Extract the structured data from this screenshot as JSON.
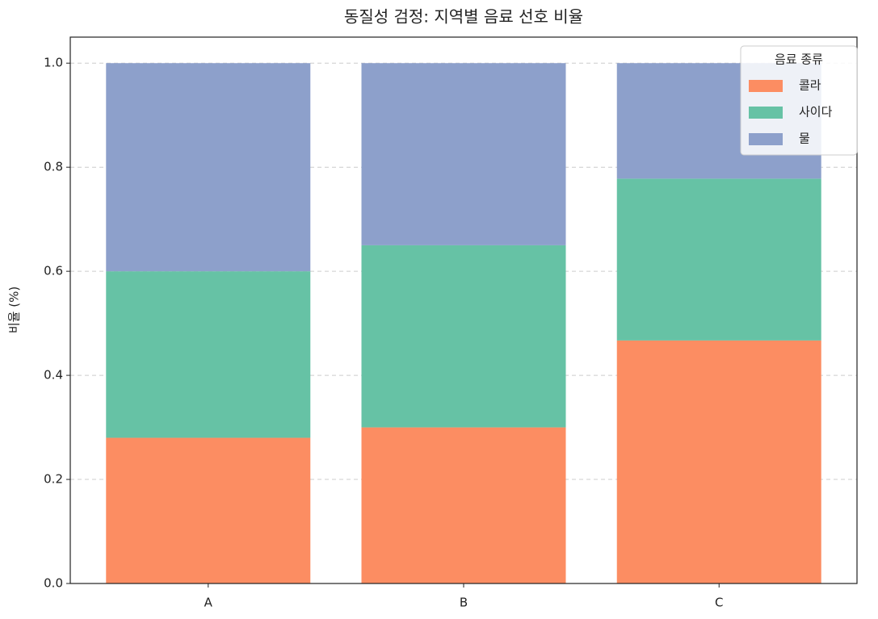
{
  "chart_data": {
    "type": "stacked_bar",
    "title": "동질성 검정: 지역별 음료 선호 비율",
    "ylabel": "비율 (%)",
    "categories": [
      "A",
      "B",
      "C"
    ],
    "series": [
      {
        "name": "콜라",
        "color": "#fc8d62",
        "values": [
          0.28,
          0.3,
          0.467
        ]
      },
      {
        "name": "사이다",
        "color": "#66c2a5",
        "values": [
          0.32,
          0.35,
          0.311
        ]
      },
      {
        "name": "물",
        "color": "#8da0cb",
        "values": [
          0.4,
          0.35,
          0.222
        ]
      }
    ],
    "ylim": [
      0,
      1.05
    ],
    "yticks": [
      {
        "value": 0,
        "label": "0.0"
      },
      0.2,
      0.4,
      0.6,
      0.8,
      {
        "value": 1,
        "label": "1.0"
      }
    ],
    "grid": true,
    "legend_title": "음료 종류",
    "legend": "upper right"
  }
}
